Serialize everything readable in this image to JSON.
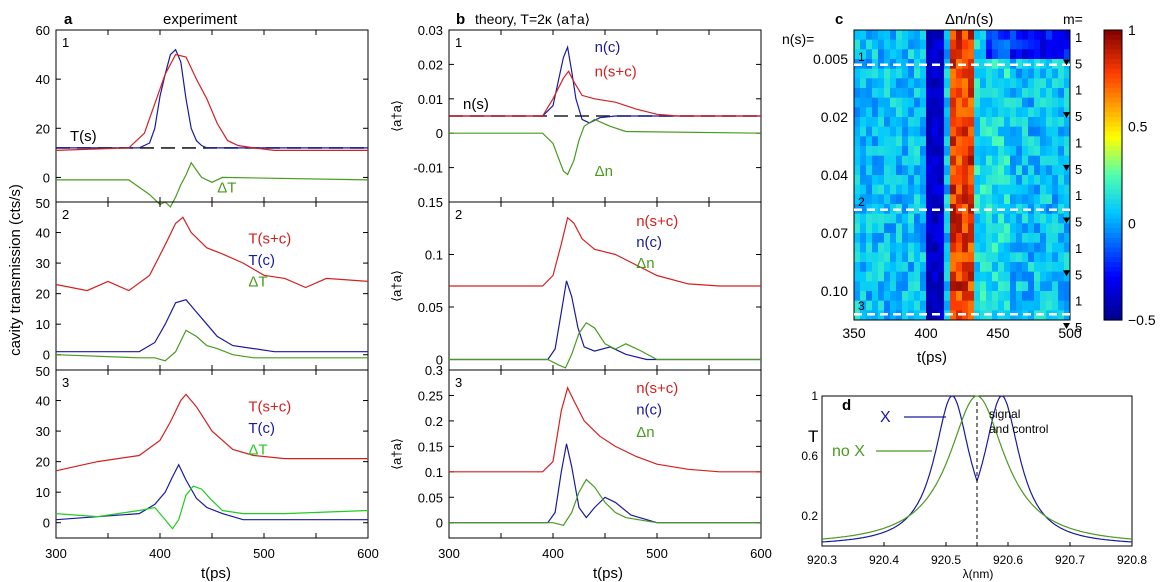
{
  "colors": {
    "red": "#d42020",
    "blue": "#1a1aa0",
    "green": "#4a9a20",
    "lime": "#22cc22",
    "black": "#000000",
    "dash": "#222222"
  },
  "panels": {
    "a": {
      "letter": "a",
      "title": "experiment",
      "ylabel": "cavity transmission (cts/s)",
      "xlabel": "t(ps)"
    },
    "b": {
      "letter": "b",
      "title": "theory, T=2κ ⟨a†a⟩",
      "ylabel": "⟨a†a⟩",
      "xlabel": "t(ps)"
    },
    "c": {
      "letter": "c",
      "title": "Δn/n(s)",
      "row_label": "n(s)=",
      "col_label": "m=",
      "xlabel": "t(ps)"
    },
    "d": {
      "letter": "d",
      "ylabel": "T",
      "xlabel": "λ(nm)"
    }
  },
  "chart_data": [
    {
      "id": "a1",
      "type": "line",
      "panel_label": "1",
      "xlim": [
        300,
        600
      ],
      "ylim": [
        -10,
        60
      ],
      "yticks": [
        0,
        20,
        40,
        60
      ],
      "hline": {
        "y": 12,
        "label": "T(s)"
      },
      "series": [
        {
          "name": "T(c)",
          "color": "blue",
          "x": [
            300,
            380,
            390,
            395,
            400,
            405,
            410,
            415,
            420,
            425,
            430,
            435,
            440,
            445,
            450,
            600
          ],
          "y": [
            12,
            12,
            14,
            20,
            33,
            42,
            50,
            52,
            47,
            32,
            20,
            15,
            13,
            12,
            12,
            12
          ]
        },
        {
          "name": "T(s+c)",
          "color": "red",
          "x": [
            300,
            370,
            385,
            395,
            405,
            415,
            425,
            435,
            445,
            455,
            465,
            475,
            490,
            510,
            600
          ],
          "y": [
            11,
            12,
            18,
            30,
            42,
            50,
            49,
            40,
            32,
            22,
            15,
            13,
            12,
            11,
            11
          ]
        },
        {
          "name": "ΔT",
          "color": "green",
          "x": [
            300,
            370,
            380,
            390,
            400,
            405,
            410,
            415,
            420,
            425,
            430,
            435,
            440,
            450,
            460,
            600
          ],
          "y": [
            -1,
            -1,
            -4,
            -7,
            -11,
            -10,
            -12,
            -8,
            -3,
            1,
            6,
            3,
            0,
            -2,
            0,
            -1
          ]
        }
      ]
    },
    {
      "id": "a2",
      "type": "line",
      "panel_label": "2",
      "xlim": [
        300,
        600
      ],
      "ylim": [
        -5,
        50
      ],
      "yticks": [
        0,
        10,
        20,
        30,
        40
      ],
      "series": [
        {
          "name": "T(s+c)",
          "color": "red",
          "x": [
            300,
            330,
            350,
            370,
            390,
            405,
            415,
            422,
            430,
            445,
            460,
            480,
            500,
            520,
            540,
            560,
            600
          ],
          "y": [
            23,
            21,
            24,
            21,
            26,
            36,
            43,
            45,
            40,
            35,
            33,
            30,
            26,
            25,
            22,
            25,
            24
          ]
        },
        {
          "name": "T(c)",
          "color": "blue",
          "x": [
            300,
            380,
            395,
            405,
            415,
            425,
            435,
            445,
            455,
            470,
            490,
            510,
            600
          ],
          "y": [
            1,
            1,
            4,
            10,
            17,
            18,
            14,
            10,
            6,
            3,
            2,
            1,
            1
          ]
        },
        {
          "name": "ΔT",
          "color": "green",
          "x": [
            300,
            380,
            395,
            405,
            415,
            425,
            435,
            445,
            455,
            470,
            490,
            600
          ],
          "y": [
            0,
            -1,
            -1,
            -2,
            1,
            8,
            6,
            3,
            2,
            0,
            -1,
            -1
          ]
        }
      ]
    },
    {
      "id": "a3",
      "type": "line",
      "panel_label": "3",
      "xlim": [
        300,
        600
      ],
      "ylim": [
        -5,
        50
      ],
      "yticks": [
        0,
        10,
        20,
        30,
        40
      ],
      "series": [
        {
          "name": "T(s+c)",
          "color": "red",
          "x": [
            300,
            340,
            380,
            400,
            410,
            420,
            425,
            435,
            450,
            470,
            490,
            520,
            560,
            600
          ],
          "y": [
            17,
            20,
            22,
            27,
            33,
            40,
            42,
            38,
            30,
            24,
            22,
            21,
            21,
            21
          ]
        },
        {
          "name": "T(c)",
          "color": "blue",
          "x": [
            300,
            380,
            395,
            405,
            412,
            418,
            425,
            435,
            445,
            460,
            480,
            520,
            600
          ],
          "y": [
            1,
            3,
            6,
            10,
            15,
            19,
            14,
            8,
            5,
            3,
            1,
            1,
            1
          ]
        },
        {
          "name": "ΔT",
          "color": "lime",
          "x": [
            300,
            340,
            380,
            395,
            405,
            412,
            418,
            425,
            432,
            440,
            448,
            460,
            480,
            520,
            600
          ],
          "y": [
            3,
            2,
            4,
            5,
            1,
            -2,
            1,
            9,
            12,
            11,
            8,
            4,
            3,
            3,
            4
          ]
        }
      ]
    },
    {
      "id": "b1",
      "type": "line",
      "panel_label": "1",
      "xlim": [
        300,
        600
      ],
      "ylim": [
        -0.02,
        0.03
      ],
      "yticks": [
        -0.01,
        0,
        0.01,
        0.02,
        0.03
      ],
      "hline": {
        "y": 0.005,
        "label": "n(s)"
      },
      "series": [
        {
          "name": "n(c)",
          "color": "blue",
          "x": [
            300,
            390,
            400,
            405,
            410,
            414,
            418,
            422,
            428,
            435,
            445,
            460,
            480,
            600
          ],
          "y": [
            0.005,
            0.005,
            0.008,
            0.015,
            0.022,
            0.025,
            0.018,
            0.01,
            0.004,
            0.003,
            0.0045,
            0.005,
            0.005,
            0.005
          ]
        },
        {
          "name": "n(s+c)",
          "color": "red",
          "x": [
            300,
            390,
            400,
            410,
            415,
            420,
            428,
            440,
            460,
            480,
            500,
            520,
            600
          ],
          "y": [
            0.005,
            0.005,
            0.01,
            0.016,
            0.018,
            0.015,
            0.011,
            0.01,
            0.009,
            0.007,
            0.0055,
            0.005,
            0.005
          ]
        },
        {
          "name": "Δn",
          "color": "green",
          "x": [
            300,
            390,
            400,
            405,
            410,
            414,
            420,
            425,
            430,
            440,
            455,
            470,
            600
          ],
          "y": [
            0,
            0,
            -0.003,
            -0.007,
            -0.011,
            -0.012,
            -0.008,
            -0.002,
            0.002,
            0.004,
            0.002,
            0.0005,
            0
          ]
        }
      ]
    },
    {
      "id": "b2",
      "type": "line",
      "panel_label": "2",
      "xlim": [
        300,
        600
      ],
      "ylim": [
        -0.01,
        0.15
      ],
      "yticks": [
        0,
        0.05,
        0.1,
        0.15
      ],
      "series": [
        {
          "name": "n(s+c)",
          "color": "red",
          "x": [
            300,
            390,
            400,
            408,
            414,
            420,
            428,
            440,
            460,
            480,
            500,
            530,
            560,
            600
          ],
          "y": [
            0.07,
            0.07,
            0.08,
            0.11,
            0.135,
            0.13,
            0.115,
            0.105,
            0.1,
            0.09,
            0.08,
            0.072,
            0.07,
            0.07
          ]
        },
        {
          "name": "n(c)",
          "color": "blue",
          "x": [
            300,
            395,
            402,
            408,
            413,
            418,
            424,
            430,
            440,
            455,
            470,
            490,
            600
          ],
          "y": [
            0,
            0,
            0.01,
            0.045,
            0.075,
            0.06,
            0.03,
            0.012,
            0.008,
            0.012,
            0.005,
            0,
            0
          ]
        },
        {
          "name": "Δn",
          "color": "green",
          "x": [
            300,
            395,
            405,
            412,
            418,
            425,
            432,
            440,
            450,
            460,
            470,
            485,
            500,
            600
          ],
          "y": [
            0,
            0,
            -0.005,
            -0.008,
            0.005,
            0.025,
            0.035,
            0.03,
            0.015,
            0.01,
            0.015,
            0.008,
            0,
            0
          ]
        }
      ]
    },
    {
      "id": "b3",
      "type": "line",
      "panel_label": "3",
      "xlim": [
        300,
        600
      ],
      "ylim": [
        -0.03,
        0.3
      ],
      "yticks": [
        0,
        0.05,
        0.1,
        0.15,
        0.2,
        0.25,
        0.3
      ],
      "series": [
        {
          "name": "n(s+c)",
          "color": "red",
          "x": [
            300,
            390,
            400,
            408,
            414,
            420,
            430,
            445,
            460,
            480,
            500,
            530,
            560,
            600
          ],
          "y": [
            0.1,
            0.1,
            0.12,
            0.22,
            0.265,
            0.24,
            0.2,
            0.17,
            0.15,
            0.13,
            0.115,
            0.105,
            0.1,
            0.1
          ]
        },
        {
          "name": "n(c)",
          "color": "blue",
          "x": [
            300,
            395,
            402,
            408,
            413,
            418,
            425,
            432,
            440,
            450,
            460,
            475,
            500,
            600
          ],
          "y": [
            0,
            0,
            0.02,
            0.1,
            0.155,
            0.11,
            0.03,
            0.01,
            0.03,
            0.05,
            0.04,
            0.015,
            0,
            0
          ]
        },
        {
          "name": "Δn",
          "color": "green",
          "x": [
            300,
            400,
            410,
            418,
            425,
            432,
            440,
            450,
            460,
            470,
            485,
            500,
            600
          ],
          "y": [
            0,
            0,
            -0.005,
            0.02,
            0.06,
            0.085,
            0.07,
            0.04,
            0.02,
            0.01,
            0.005,
            0,
            0
          ]
        }
      ]
    },
    {
      "id": "c",
      "type": "heatmap",
      "xlim": [
        350,
        500
      ],
      "xticks": [
        350,
        400,
        450,
        500
      ],
      "row_labels": [
        "0.005",
        "0.02",
        "0.04",
        "0.07",
        "0.10"
      ],
      "m_labels": [
        "1",
        "5",
        "1",
        "5",
        "1",
        "5",
        "1",
        "5",
        "1",
        "5",
        "1",
        "5"
      ],
      "colorbar": {
        "min": -0.5,
        "max": 1,
        "ticks": [
          "1",
          "0.5",
          "0",
          "−0.5"
        ]
      },
      "dashed_rows": [
        {
          "label": "1",
          "row": 0.12
        },
        {
          "label": "2",
          "row": 0.62
        },
        {
          "label": "3",
          "row": 0.98
        }
      ],
      "description_values": {
        "dark_band_t": [
          400,
          412
        ],
        "bright_band_t": [
          418,
          432
        ]
      }
    },
    {
      "id": "d",
      "type": "line",
      "xlim": [
        920.3,
        920.8
      ],
      "ylim": [
        0,
        1
      ],
      "xticks": [
        "920.3",
        "920.4",
        "920.5",
        "920.6",
        "920.7",
        "920.8"
      ],
      "yticks": [
        "0.2",
        "0.6",
        "1"
      ],
      "vline": {
        "x": 920.55,
        "label": "signal\nand control"
      },
      "series": [
        {
          "name": "X",
          "color": "blue",
          "type": "double-lorentzian",
          "centers": [
            920.51,
            920.59
          ],
          "gamma": 0.035
        },
        {
          "name": "no X",
          "color": "green",
          "type": "lorentzian",
          "center": 920.55,
          "gamma": 0.055
        }
      ]
    }
  ]
}
